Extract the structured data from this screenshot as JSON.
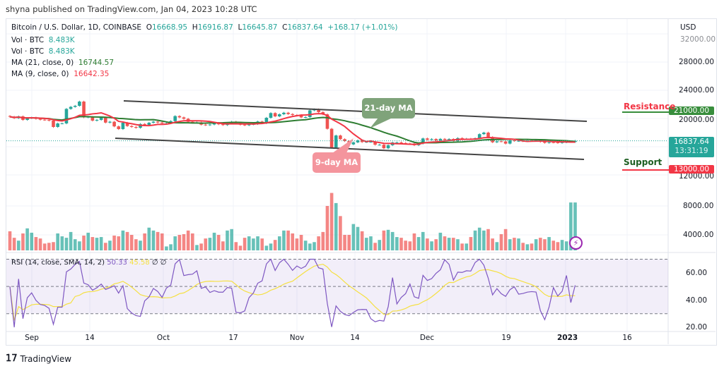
{
  "publisher_line": "shyna published on TradingView.com, Jan 04, 2023 10:28 UTC",
  "header": {
    "symbol": "Bitcoin / U.S. Dollar, 1D, COINBASE",
    "open_label": "O",
    "open": "16668.95",
    "high_label": "H",
    "high": "16916.87",
    "low_label": "L",
    "low": "16645.87",
    "close_label": "C",
    "close": "16837.64",
    "change": "+168.17 (+1.01%)"
  },
  "indicators": {
    "vol1_label": "Vol · BTC",
    "vol1_value": "8.483K",
    "vol2_label": "Vol · BTC",
    "vol2_value": "8.483K",
    "ma21_label": "MA (21, close, 0)",
    "ma21_value": "16744.57",
    "ma9_label": "MA (9, close, 0)",
    "ma9_value": "16642.35",
    "rsi_label": "RSI (14, close, SMA, 14, 2)",
    "rsi_value": "50.33",
    "rsi_sma_value": "45.58",
    "rsi_extra1": "∅",
    "rsi_extra2": "∅"
  },
  "price_axis": {
    "currency": "USD",
    "ticks": [
      "32000.00",
      "28000.00",
      "24000.00",
      "20000.00",
      "12000.00"
    ],
    "volume_ticks": [
      "8000.00",
      "4000.00"
    ]
  },
  "rsi_axis": {
    "ticks": [
      "60.00",
      "40.00",
      "20.00"
    ]
  },
  "time_axis": [
    "Sep",
    "14",
    "Oct",
    "17",
    "Nov",
    "14",
    "Dec",
    "19",
    "2023",
    "16"
  ],
  "price_tags": {
    "resistance": "21000.00",
    "last_price": "16837.64",
    "countdown": "13:31:19",
    "support": "13000.00"
  },
  "annotations": {
    "resistance": "Resistance",
    "support": "Support",
    "ma21_callout": "21-day MA",
    "ma9_callout": "9-day MA"
  },
  "footer": {
    "brand": "TradingView"
  },
  "colors": {
    "up": "#26a69a",
    "down": "#ef5350",
    "ma21": "#2e7d32",
    "ma9": "#f23645",
    "rsi": "#7e57c2",
    "rsi_sma": "#f5e042",
    "resistance": "#f23645",
    "support": "#1b5e20"
  },
  "chart_data": {
    "type": "candlestick",
    "start_date": "2022-08-27",
    "end_date": "2023-01-04",
    "closes": [
      20250,
      20050,
      20300,
      19800,
      20050,
      20130,
      19950,
      19830,
      19800,
      19700,
      18800,
      19300,
      19300,
      21360,
      21650,
      21800,
      22400,
      20170,
      20230,
      19700,
      19800,
      20100,
      19420,
      19540,
      18880,
      18500,
      19400,
      18930,
      18800,
      18680,
      19220,
      19080,
      19400,
      19550,
      19430,
      19320,
      19320,
      19630,
      20340,
      20160,
      19960,
      19530,
      19420,
      19450,
      19130,
      19060,
      19150,
      19370,
      19180,
      19070,
      19270,
      19550,
      19330,
      19120,
      19040,
      19160,
      19210,
      19570,
      19330,
      20100,
      20770,
      20300,
      20600,
      20820,
      20630,
      20500,
      20480,
      20160,
      20200,
      21150,
      21300,
      20900,
      20590,
      18540,
      15880,
      17590,
      17070,
      16800,
      16330,
      16620,
      16900,
      16660,
      16690,
      16700,
      16280,
      16280,
      15780,
      16210,
      16600,
      16600,
      16520,
      16460,
      16430,
      16210,
      16440,
      17170,
      16980,
      17090,
      16890,
      17110,
      16970,
      17090,
      16840,
      17220,
      17130,
      17130,
      17090,
      17200,
      17780,
      18000,
      17360,
      16630,
      16770,
      16740,
      16440,
      16900,
      16820,
      16830,
      16780,
      16840,
      16830,
      16920,
      16700,
      16550,
      16630,
      16600,
      16540,
      16620,
      16670,
      16670,
      16837.64
    ],
    "volumes": [
      4500,
      3600,
      3200,
      4200,
      4900,
      4300,
      3700,
      3500,
      2800,
      2900,
      3000,
      4200,
      3800,
      3600,
      4400,
      3400,
      3100,
      3900,
      4300,
      3700,
      3600,
      3700,
      2900,
      3200,
      3900,
      3800,
      4600,
      4400,
      4000,
      3400,
      3200,
      4200,
      5000,
      4600,
      4400,
      4200,
      2400,
      2700,
      3800,
      4000,
      4100,
      4600,
      4200,
      2600,
      2800,
      3500,
      3600,
      4300,
      4000,
      3100,
      4600,
      4800,
      3000,
      2500,
      3600,
      3800,
      3500,
      3800,
      3500,
      2500,
      2800,
      3300,
      3800,
      4600,
      4600,
      4200,
      3500,
      4000,
      3200,
      2800,
      3000,
      3800,
      4400,
      8000,
      9800,
      8400,
      6600,
      4000,
      4000,
      5500,
      5100,
      4500,
      3600,
      3800,
      2900,
      3300,
      4600,
      4700,
      4400,
      3700,
      3600,
      3200,
      3100,
      4200,
      3700,
      4400,
      3500,
      3100,
      3400,
      4300,
      3800,
      3600,
      3600,
      3400,
      2800,
      2800,
      3700,
      4600,
      5000,
      4600,
      4800,
      3500,
      3000,
      4100,
      4800,
      3400,
      3600,
      3500,
      2900,
      2700,
      2800,
      3400,
      3600,
      3400,
      3700,
      3200,
      3000,
      3300,
      3100,
      8483,
      8483
    ],
    "rsi_range": [
      20,
      70
    ],
    "rsi_bands": [
      30,
      50,
      70
    ],
    "price_range": [
      11000,
      33000
    ],
    "resistance_level": 21000,
    "support_level": 13000
  }
}
